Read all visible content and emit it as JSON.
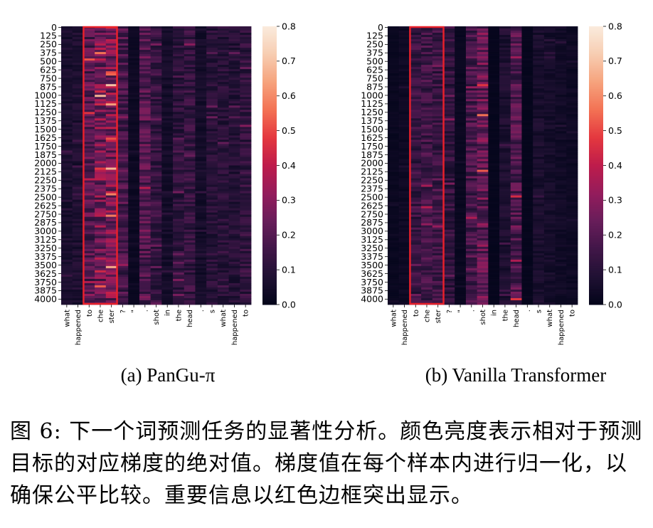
{
  "figure": {
    "caption": "图 6: 下一个词预测任务的显著性分析。颜色亮度表示相对于预测目标的对应梯度的绝对值。梯度值在每个样本内进行归一化，以确保公平比较。重要信息以红色边框突出显示。"
  },
  "chart_data": [
    {
      "type": "heatmap",
      "subtitle": "(a) PanGu-π",
      "x_tokens": [
        "what",
        "happened",
        "to",
        "che",
        "ster",
        "?",
        "\"",
        ".",
        "shot",
        "in",
        "the",
        "head",
        ".",
        "s",
        "what",
        "happened",
        "to"
      ],
      "y_ticks": [
        0,
        125,
        250,
        375,
        500,
        625,
        750,
        875,
        1000,
        1125,
        1250,
        1375,
        1500,
        1625,
        1750,
        1875,
        2000,
        2125,
        2250,
        2375,
        2500,
        2625,
        2750,
        2875,
        3000,
        3125,
        3250,
        3375,
        3500,
        3625,
        3750,
        3875,
        4000
      ],
      "y_range": [
        0,
        4096
      ],
      "colorbar": {
        "ticks": [
          0.0,
          0.1,
          0.2,
          0.3,
          0.4,
          0.5,
          0.6,
          0.7,
          0.8
        ],
        "range": [
          0,
          0.8
        ],
        "colormap": "rocket"
      },
      "column_mean_intensity": [
        0.06,
        0.07,
        0.2,
        0.26,
        0.27,
        0.17,
        0.03,
        0.19,
        0.13,
        0.05,
        0.11,
        0.13,
        0.05,
        0.1,
        0.1,
        0.09,
        0.12
      ],
      "highlight": {
        "columns": [
          "to",
          "che",
          "ster"
        ],
        "color": "#e8202a"
      }
    },
    {
      "type": "heatmap",
      "subtitle": "(b) Vanilla Transformer",
      "x_tokens": [
        "what",
        "happened",
        "to",
        "che",
        "ster",
        "?",
        "\"",
        ".",
        "shot",
        "in",
        "the",
        "head",
        ".",
        "s",
        "what",
        "happened",
        "to"
      ],
      "y_ticks": [
        0,
        125,
        250,
        375,
        500,
        625,
        750,
        875,
        1000,
        1125,
        1250,
        1375,
        1500,
        1625,
        1750,
        1875,
        2000,
        2125,
        2250,
        2375,
        2500,
        2625,
        2750,
        2875,
        3000,
        3125,
        3250,
        3375,
        3500,
        3625,
        3750,
        3875,
        4000
      ],
      "y_range": [
        0,
        4096
      ],
      "colorbar": {
        "ticks": [
          0.0,
          0.1,
          0.2,
          0.3,
          0.4,
          0.5,
          0.6,
          0.7,
          0.8
        ],
        "range": [
          0,
          0.8
        ],
        "colormap": "rocket"
      },
      "column_mean_intensity": [
        0.02,
        0.03,
        0.13,
        0.15,
        0.14,
        0.12,
        0.02,
        0.17,
        0.22,
        0.01,
        0.07,
        0.18,
        0.01,
        0.06,
        0.05,
        0.04,
        0.03
      ],
      "highlight": {
        "columns": [
          "to",
          "che",
          "ster"
        ],
        "color": "#e8202a"
      }
    }
  ]
}
